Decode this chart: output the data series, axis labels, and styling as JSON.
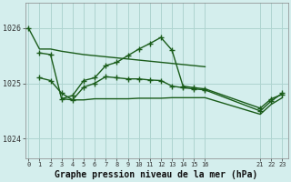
{
  "background_color": "#d4eeed",
  "grid_color": "#aed4d0",
  "line_color": "#1a5c1a",
  "title": "Graphe pression niveau de la mer (hPa)",
  "ylim": [
    1023.65,
    1026.45
  ],
  "xlim": [
    -0.3,
    23.5
  ],
  "yticks": [
    1024,
    1025,
    1026
  ],
  "xticks": [
    0,
    1,
    2,
    3,
    4,
    5,
    6,
    7,
    8,
    9,
    10,
    11,
    12,
    13,
    14,
    15,
    16,
    21,
    22,
    23
  ],
  "line1_x": [
    0,
    1,
    2,
    3,
    4,
    5,
    6,
    7,
    8,
    9,
    10,
    11,
    12,
    13,
    14,
    15,
    16
  ],
  "line1_y": [
    1026.0,
    1025.62,
    1025.62,
    1025.58,
    1025.55,
    1025.52,
    1025.5,
    1025.48,
    1025.46,
    1025.44,
    1025.42,
    1025.4,
    1025.38,
    1025.36,
    1025.34,
    1025.32,
    1025.3
  ],
  "line2_x": [
    1,
    2,
    3,
    4,
    5,
    6,
    7,
    8,
    9,
    10,
    11,
    12,
    13,
    14,
    15,
    16,
    21,
    22,
    23
  ],
  "line2_y": [
    1025.55,
    1025.52,
    1024.72,
    1024.78,
    1025.05,
    1025.1,
    1025.32,
    1025.38,
    1025.5,
    1025.62,
    1025.72,
    1025.83,
    1025.6,
    1024.95,
    1024.92,
    1024.9,
    1024.55,
    1024.72,
    1024.8
  ],
  "line3_x": [
    1,
    2,
    3,
    4,
    5,
    6,
    7,
    8,
    9,
    10,
    11,
    12,
    13,
    14,
    15,
    16,
    21,
    22,
    23
  ],
  "line3_y": [
    1025.1,
    1025.05,
    1024.82,
    1024.7,
    1024.93,
    1025.0,
    1025.12,
    1025.1,
    1025.08,
    1025.08,
    1025.06,
    1025.05,
    1024.95,
    1024.92,
    1024.9,
    1024.88,
    1024.5,
    1024.68,
    1024.82
  ],
  "line4_x": [
    3,
    4,
    5,
    6,
    7,
    8,
    9,
    10,
    11,
    12,
    13,
    14,
    15,
    16,
    21,
    22,
    23
  ],
  "line4_y": [
    1024.72,
    1024.7,
    1024.7,
    1024.72,
    1024.72,
    1024.72,
    1024.72,
    1024.73,
    1024.73,
    1024.73,
    1024.74,
    1024.74,
    1024.74,
    1024.74,
    1024.44,
    1024.62,
    1024.74
  ]
}
